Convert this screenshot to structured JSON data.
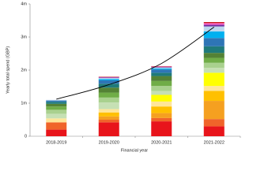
{
  "chart_data": {
    "type": "stacked_bar",
    "x_label": "Financial year",
    "y_label": "Yearly total spend (GBP)",
    "categories": [
      "2018-2019",
      "2019-2020",
      "2020-2021",
      "2021-2022"
    ],
    "ylim": [
      0,
      4000000
    ],
    "yticks": [
      0,
      {
        "value": 1000000,
        "label": "1m"
      },
      {
        "value": 2000000,
        "label": "2m"
      },
      {
        "value": 3000000,
        "label": "3m"
      },
      {
        "value": 4000000,
        "label": "4m"
      }
    ],
    "series": [
      {
        "color": "#e8141b",
        "values": [
          200000,
          420000,
          450000,
          300000
        ]
      },
      {
        "color": "#f0642a",
        "values": [
          220000,
          80000,
          100000,
          220000
        ]
      },
      {
        "color": "#f5a020",
        "values": [
          0,
          100000,
          150000,
          550000
        ]
      },
      {
        "color": "#ffc000",
        "values": [
          0,
          120000,
          200000,
          300000
        ]
      },
      {
        "color": "#ffe699",
        "values": [
          120000,
          100000,
          150000,
          150000
        ]
      },
      {
        "color": "#ffff00",
        "values": [
          0,
          0,
          200000,
          400000
        ]
      },
      {
        "color": "#c6e0b4",
        "values": [
          140000,
          200000,
          120000,
          150000
        ]
      },
      {
        "color": "#a9d18e",
        "values": [
          120000,
          150000,
          150000,
          150000
        ]
      },
      {
        "color": "#70ad47",
        "values": [
          100000,
          150000,
          150000,
          150000
        ]
      },
      {
        "color": "#548235",
        "values": [
          80000,
          150000,
          150000,
          150000
        ]
      },
      {
        "color": "#1f7a7a",
        "values": [
          60000,
          120000,
          100000,
          200000
        ]
      },
      {
        "color": "#2e75b6",
        "values": [
          40000,
          100000,
          100000,
          250000
        ]
      },
      {
        "color": "#00b0f0",
        "values": [
          0,
          40000,
          30000,
          200000
        ]
      },
      {
        "color": "#bdd7ee",
        "values": [
          20000,
          30000,
          30000,
          150000
        ]
      },
      {
        "color": "#7030a0",
        "values": [
          0,
          20000,
          20000,
          50000
        ]
      },
      {
        "color": "#ff66cc",
        "values": [
          0,
          10000,
          10000,
          50000
        ]
      },
      {
        "color": "#c00000",
        "values": [
          0,
          10000,
          10000,
          30000
        ]
      }
    ],
    "trendline": {
      "color": "#000000",
      "values": [
        1120000,
        1560000,
        2200000,
        3300000
      ]
    }
  }
}
